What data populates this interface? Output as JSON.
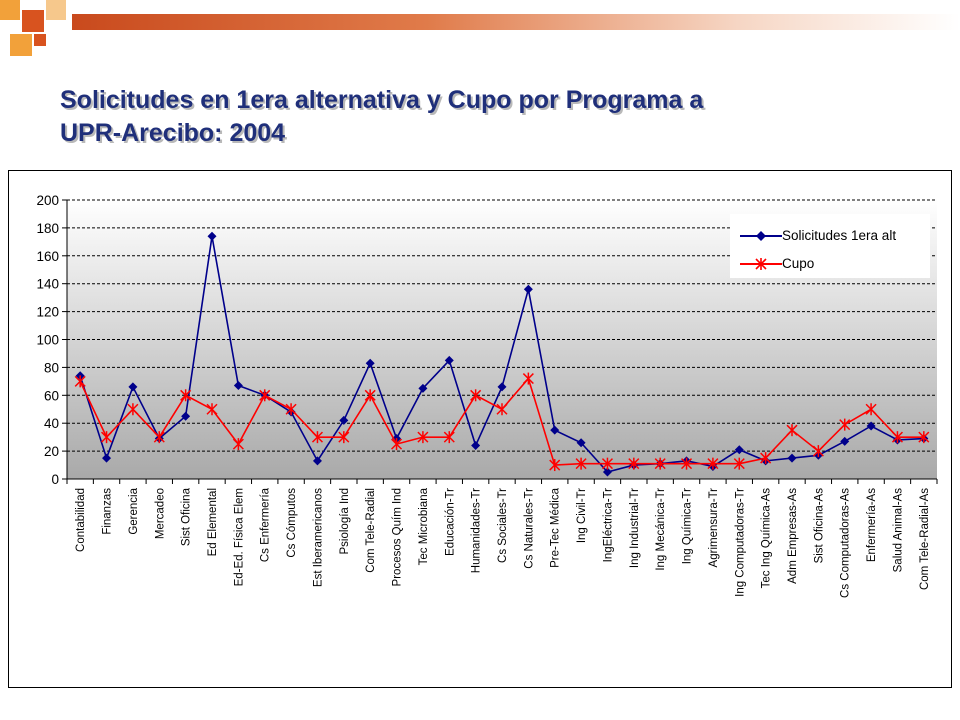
{
  "slide": {
    "title_line1": "Solicitudes en 1era alternativa y Cupo por Programa a",
    "title_line2": "UPR-Arecibo: 2004",
    "accent_color": "#c94a1d",
    "decor_square_colors": [
      "#f2a13a",
      "#d8531f",
      "#f6c88c"
    ]
  },
  "chart_data": {
    "type": "line",
    "categories": [
      "Contabilidad",
      "Finanzas",
      "Gerencia",
      "Mercadeo",
      "Sist Oficina",
      "Ed Elemental",
      "Ed-Ed. Física Elem",
      "Cs Enfermería",
      "Cs Cómputos",
      "Est Iberamericanos",
      "Psiología Ind",
      "Com Tele-Radial",
      "Procesos Quím Ind",
      "Tec Microbiana",
      "Educación-Tr",
      "Humanidades-Tr",
      "Cs Sociales-Tr",
      "Cs Naturales-Tr",
      "Pre-Tec Médica",
      "Ing Civil-Tr",
      "IngEléctrica-Tr",
      "Ing Industrial-Tr",
      "Ing Mecánica-Tr",
      "Ing Química-Tr",
      "Agrimensura-Tr",
      "Ing Computadoras-Tr",
      "Tec Ing Química-As",
      "Adm Empresas-As",
      "Sist Oficina-As",
      "Cs Computadoras-As",
      "Enfermería-As",
      "Salud Animal-As",
      "Com Tele-Radial-As"
    ],
    "series": [
      {
        "name": "Solicitudes 1era alt",
        "color": "#00008b",
        "marker": "diamond",
        "values": [
          74,
          15,
          66,
          29,
          45,
          174,
          67,
          60,
          48,
          13,
          42,
          83,
          29,
          65,
          85,
          24,
          66,
          136,
          35,
          26,
          5,
          10,
          11,
          13,
          9,
          21,
          13,
          15,
          17,
          27,
          38,
          28,
          29
        ]
      },
      {
        "name": "Cupo",
        "color": "#ff0000",
        "marker": "asterisk",
        "values": [
          70,
          30,
          50,
          30,
          60,
          50,
          25,
          60,
          50,
          30,
          30,
          60,
          25,
          30,
          30,
          60,
          50,
          72,
          10,
          11,
          11,
          11,
          11,
          11,
          11,
          11,
          15,
          35,
          20,
          39,
          50,
          30,
          30
        ]
      }
    ],
    "y_ticks": [
      "0",
      "20",
      "40",
      "60",
      "80",
      "100",
      "120",
      "140",
      "160",
      "180",
      "200"
    ],
    "ylim": [
      0,
      200
    ],
    "grid": true,
    "legend_position": "top-right"
  }
}
